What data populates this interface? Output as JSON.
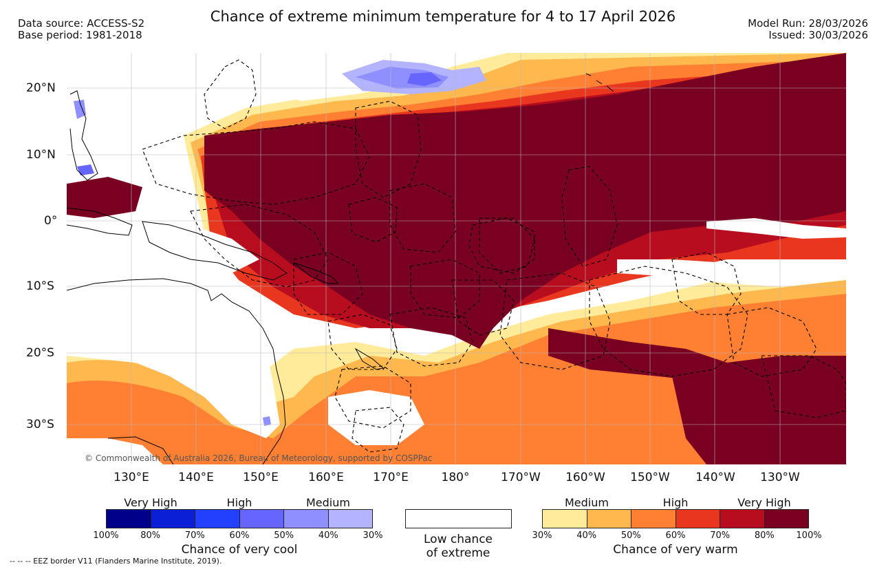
{
  "header": {
    "title": "Chance of extreme minimum temperature for 4 to 17 April 2026",
    "data_source": "Data source: ACCESS-S2",
    "base_period": "Base period: 1981-2018",
    "model_run": "Model Run: 28/03/2026",
    "issued": "Issued: 30/03/2026"
  },
  "map": {
    "lat_labels": [
      "20°N",
      "10°N",
      "0°",
      "10°S",
      "20°S",
      "30°S"
    ],
    "lon_labels": [
      "130°E",
      "140°E",
      "150°E",
      "160°E",
      "170°E",
      "180°",
      "170°W",
      "160°W",
      "150°W",
      "140°W",
      "130°W"
    ],
    "credit": "© Commonwealth of Australia 2026, Bureau of Meteorology, supported by COSPPac"
  },
  "legend": {
    "cool": {
      "categories": [
        "Very High",
        "High",
        "Medium"
      ],
      "percents": [
        "100%",
        "80%",
        "70%",
        "60%",
        "50%",
        "40%",
        "30%"
      ],
      "colors": [
        "#00008b",
        "#0a1fd6",
        "#2440ff",
        "#6666ff",
        "#8f8fff",
        "#b3b3ff"
      ],
      "caption": "Chance of very cool"
    },
    "low": {
      "line1": "Low chance",
      "line2": "of extreme"
    },
    "warm": {
      "categories": [
        "Medium",
        "High",
        "Very High"
      ],
      "percents": [
        "30%",
        "40%",
        "50%",
        "60%",
        "70%",
        "80%",
        "100%"
      ],
      "colors": [
        "#ffeb99",
        "#ffb84d",
        "#ff7f33",
        "#e8361f",
        "#b80d1f",
        "#7a0021"
      ],
      "caption": "Chance of very warm"
    }
  },
  "footer": "--  --  -- EEZ border V11 (Flanders Marine Institute, 2019)."
}
